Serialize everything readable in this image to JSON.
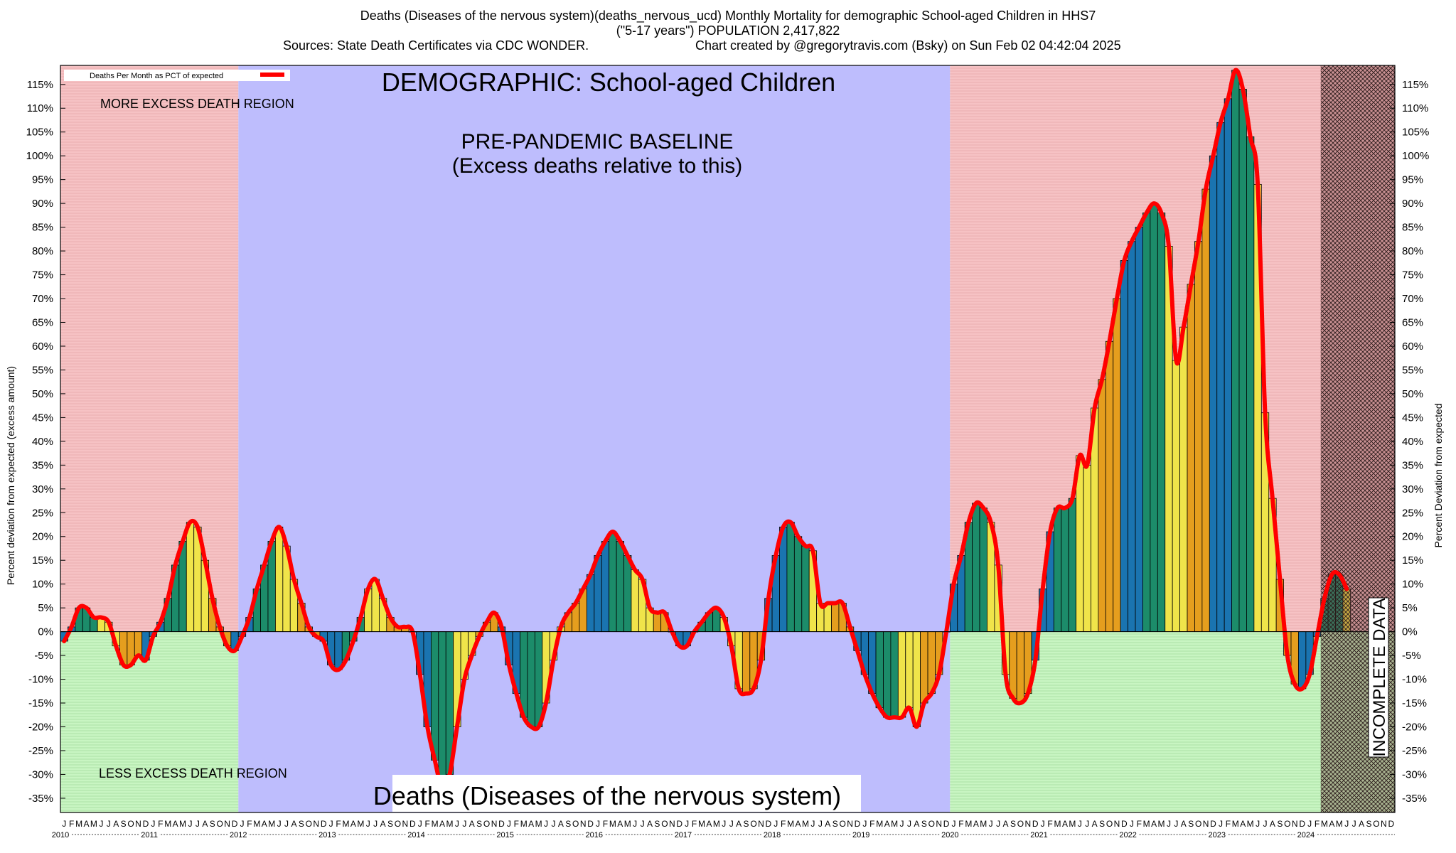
{
  "header": {
    "title_line1": "Deaths (Diseases of the nervous system)(deaths_nervous_ucd) Monthly Mortality for demographic School-aged Children in HHS7",
    "title_line2": "(\"5-17 years\") POPULATION 2,417,822",
    "title_line3_left": "Sources: State Death Certificates via CDC WONDER.",
    "title_line3_right": "Chart created by @gregorytravis.com (Bsky) on Sun Feb 02 04:42:04 2025"
  },
  "annotations": {
    "demographic": "DEMOGRAPHIC: School-aged Children",
    "baseline_line1": "PRE-PANDEMIC BASELINE",
    "baseline_line2": "(Excess deaths relative to this)",
    "more_region": "MORE EXCESS DEATH REGION",
    "less_region": "LESS EXCESS DEATH REGION",
    "bottom_label": "Deaths (Diseases of the nervous system)",
    "incomplete": "INCOMPLETE DATA",
    "legend": "Deaths Per Month as PCT of expected"
  },
  "colors": {
    "more_region": "#f6c2c4",
    "less_region": "#c8f5c2",
    "baseline_region": "#bebdfd",
    "line": "#ff0000",
    "bar_palette": [
      "#1a74b0",
      "#1c8c6a",
      "#f0e44a",
      "#e59e1e"
    ]
  },
  "chart_data": {
    "type": "bar",
    "ylabel_left": "Percent deviation from expected (excess amount)",
    "ylabel_right": "Percent Deviation from expected",
    "ylim": [
      -38,
      119
    ],
    "yticks": [
      -35,
      -30,
      -25,
      -20,
      -15,
      -10,
      -5,
      0,
      5,
      10,
      15,
      20,
      25,
      30,
      35,
      40,
      45,
      50,
      55,
      60,
      65,
      70,
      75,
      80,
      85,
      90,
      95,
      100,
      105,
      110,
      115
    ],
    "month_letters": [
      "J",
      "F",
      "M",
      "A",
      "M",
      "J",
      "J",
      "A",
      "S",
      "O",
      "N",
      "D"
    ],
    "years": [
      "2010",
      "2011",
      "2012",
      "2013",
      "2014",
      "2015",
      "2016",
      "2017",
      "2018",
      "2019",
      "2020",
      "2021",
      "2022",
      "2023",
      "2024"
    ],
    "start": "2010-01",
    "baseline_period": [
      "2012-01",
      "2019-12"
    ],
    "incomplete_from": "2024-03",
    "series": [
      {
        "values": [
          -2,
          1,
          5,
          5,
          3,
          3,
          2,
          -3,
          -7,
          -7,
          -5,
          -6,
          -1,
          2,
          7,
          14,
          19,
          23,
          22,
          15,
          7,
          1,
          -3,
          -4,
          -1,
          3,
          9,
          14,
          19,
          22,
          18,
          11,
          6,
          1,
          -1,
          -2,
          -7,
          -8,
          -6,
          -2,
          3,
          9,
          11,
          7,
          3,
          1,
          1,
          0,
          -9,
          -20,
          -27,
          -33,
          -30,
          -20,
          -10,
          -5,
          -1,
          2,
          4,
          1,
          -7,
          -13,
          -18,
          -20,
          -20,
          -15,
          -6,
          1,
          4,
          6,
          9,
          12,
          16,
          19,
          21,
          19,
          16,
          13,
          11,
          5,
          4,
          4,
          0,
          -3,
          -3,
          0,
          2,
          4,
          5,
          3,
          -3,
          -12,
          -13,
          -12,
          -6,
          7,
          16,
          22,
          23,
          20,
          18,
          17,
          6,
          6,
          6,
          6,
          1,
          -4,
          -9,
          -13,
          -16,
          -18,
          -18,
          -18,
          -16,
          -20,
          -15,
          -13,
          -9,
          0,
          10,
          16,
          23,
          27,
          26,
          23,
          14,
          -9,
          -14,
          -15,
          -13,
          -6,
          9,
          21,
          26,
          26,
          28,
          37,
          35,
          47,
          53,
          61,
          70,
          78,
          82,
          85,
          88,
          90,
          88,
          81,
          57,
          64,
          73,
          82,
          93,
          100,
          107,
          112,
          118,
          114,
          104,
          94,
          46,
          28,
          11,
          -5,
          -11,
          -12,
          -9,
          -1,
          7,
          12,
          12,
          9
        ]
      }
    ]
  }
}
